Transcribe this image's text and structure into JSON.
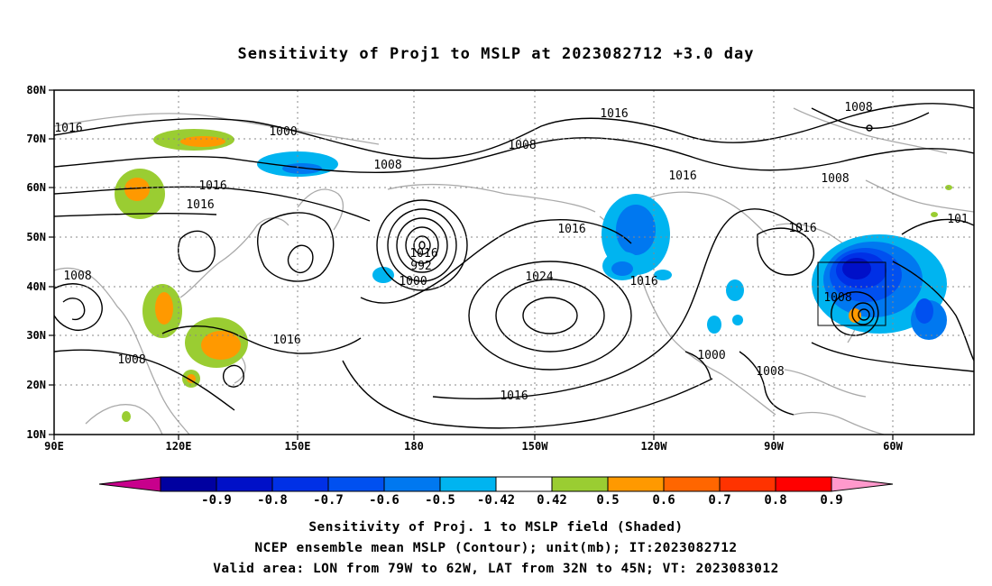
{
  "title": "Sensitivity of Proj1 to MSLP at 2023082712 +3.0 day",
  "map": {
    "lon_labels": [
      "90E",
      "120E",
      "150E",
      "180",
      "150W",
      "120W",
      "90W",
      "60W"
    ],
    "lat_labels": [
      "80N",
      "70N",
      "60N",
      "50N",
      "40N",
      "30N",
      "20N",
      "10N"
    ],
    "contour_labels": [
      "1016",
      "1000",
      "1008",
      "1016",
      "1016",
      "1008",
      "1016",
      "1008",
      "1000",
      "992",
      "1016",
      "1024",
      "1016",
      "1016",
      "1016",
      "1008",
      "1016",
      "1000",
      "1008",
      "1008",
      "1016",
      "1008",
      "1008",
      "1016",
      "101"
    ]
  },
  "colorbar": {
    "levels": [
      "-0.9",
      "-0.8",
      "-0.7",
      "-0.6",
      "-0.5",
      "-0.42",
      "0.42",
      "0.5",
      "0.6",
      "0.7",
      "0.8",
      "0.9"
    ],
    "colors": [
      "#c8008c",
      "#0000a0",
      "#0010c8",
      "#0030e6",
      "#0050f0",
      "#0078f0",
      "#00b4f0",
      "#ffffff",
      "#9acd32",
      "#ff9900",
      "#ff6600",
      "#ff3300",
      "#ff0000",
      "#ff99cc"
    ]
  },
  "captions": {
    "line1": "Sensitivity of Proj. 1 to MSLP field (Shaded)",
    "line2": "NCEP ensemble mean MSLP (Contour); unit(mb); IT:2023082712",
    "line3": "Valid area: LON from 79W to 62W, LAT from 32N to 45N; VT: 2023083012"
  }
}
